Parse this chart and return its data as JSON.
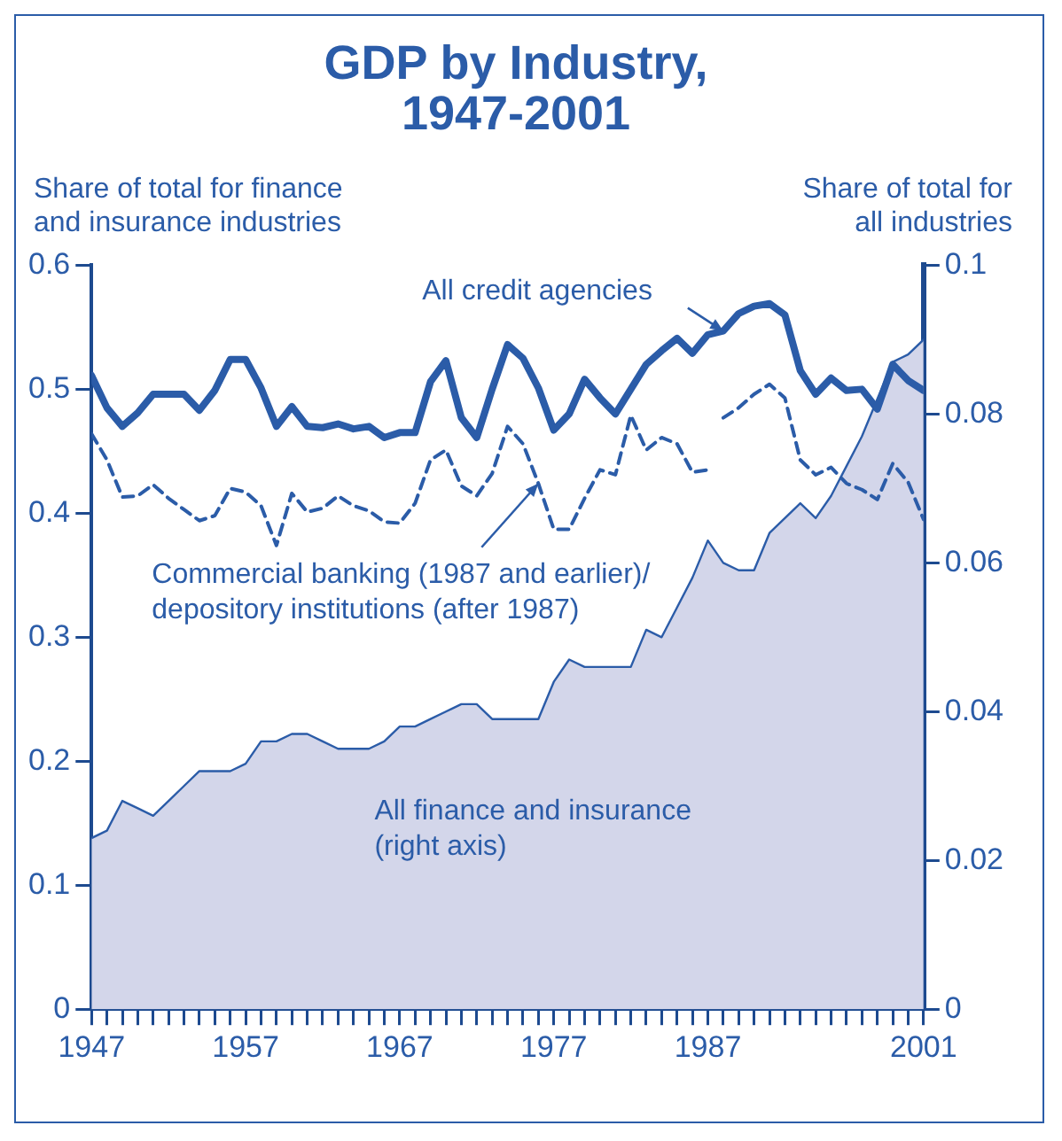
{
  "chart_data": {
    "type": "line",
    "title": "GDP by Industry,\n1947-2001",
    "ylabel": "Share of total for finance\nand insurance industries",
    "y2label": "Share of total for\nall industries",
    "x": [
      1947,
      1948,
      1949,
      1950,
      1951,
      1952,
      1953,
      1954,
      1955,
      1956,
      1957,
      1958,
      1959,
      1960,
      1961,
      1962,
      1963,
      1964,
      1965,
      1966,
      1967,
      1968,
      1969,
      1970,
      1971,
      1972,
      1973,
      1974,
      1975,
      1976,
      1977,
      1978,
      1979,
      1980,
      1981,
      1982,
      1983,
      1984,
      1985,
      1986,
      1987,
      1988,
      1989,
      1990,
      1991,
      1992,
      1993,
      1994,
      1995,
      1996,
      1997,
      1998,
      1999,
      2000,
      2001
    ],
    "series": [
      {
        "type": "area",
        "axis": "y2",
        "color": "#d3d6ea",
        "values": [
          0.023,
          0.024,
          0.028,
          0.027,
          0.026,
          0.028,
          0.03,
          0.032,
          0.032,
          0.032,
          0.033,
          0.036,
          0.036,
          0.037,
          0.037,
          0.036,
          0.035,
          0.035,
          0.035,
          0.036,
          0.038,
          0.038,
          0.039,
          0.04,
          0.041,
          0.041,
          0.039,
          0.039,
          0.039,
          0.039,
          0.044,
          0.047,
          0.046,
          0.046,
          0.046,
          0.046,
          0.051,
          0.05,
          0.054,
          0.058,
          0.063,
          0.06,
          0.059,
          0.059,
          0.064,
          0.066,
          0.068,
          0.066,
          0.069,
          0.073,
          0.077,
          0.082,
          0.087,
          0.088,
          0.09
        ]
      },
      {
        "type": "line",
        "line_style": "solid",
        "color": "#2b5ca8",
        "values": [
          0.511,
          0.485,
          0.47,
          0.481,
          0.496,
          0.496,
          0.496,
          0.483,
          0.499,
          0.524,
          0.524,
          0.501,
          0.47,
          0.486,
          0.47,
          0.469,
          0.472,
          0.468,
          0.47,
          0.461,
          0.465,
          0.465,
          0.506,
          0.523,
          0.477,
          0.461,
          0.5,
          0.536,
          0.525,
          0.501,
          0.467,
          0.48,
          0.508,
          0.493,
          0.48,
          0.5,
          0.52,
          0.531,
          0.541,
          0.529,
          0.544,
          0.547,
          0.561,
          0.567,
          0.569,
          0.56,
          0.515,
          0.496,
          0.509,
          0.499,
          0.5,
          0.484,
          0.52,
          0.507,
          0.499
        ]
      },
      {
        "type": "line",
        "line_style": "dashed",
        "color": "#2b5ca8",
        "x": [
          1947,
          1948,
          1949,
          1950,
          1951,
          1952,
          1953,
          1954,
          1955,
          1956,
          1957,
          1958,
          1959,
          1960,
          1961,
          1962,
          1963,
          1964,
          1965,
          1966,
          1967,
          1968,
          1969,
          1970,
          1971,
          1972,
          1973,
          1974,
          1975,
          1976,
          1977,
          1978,
          1979,
          1980,
          1981,
          1982,
          1983,
          1984,
          1985,
          1986,
          1987
        ],
        "values": [
          0.464,
          0.443,
          0.413,
          0.414,
          0.423,
          0.412,
          0.403,
          0.394,
          0.398,
          0.42,
          0.417,
          0.406,
          0.374,
          0.416,
          0.401,
          0.404,
          0.414,
          0.406,
          0.402,
          0.393,
          0.392,
          0.408,
          0.443,
          0.451,
          0.422,
          0.414,
          0.432,
          0.47,
          0.456,
          0.424,
          0.387,
          0.387,
          0.412,
          0.435,
          0.431,
          0.479,
          0.451,
          0.461,
          0.456,
          0.433,
          0.435
        ]
      },
      {
        "type": "line",
        "line_style": "dashed",
        "color": "#2b5ca8",
        "x": [
          1988,
          1989,
          1990,
          1991,
          1992,
          1993,
          1994,
          1995,
          1996,
          1997,
          1998,
          1999,
          2000,
          2001
        ],
        "values": [
          0.477,
          0.485,
          0.496,
          0.504,
          0.493,
          0.443,
          0.431,
          0.437,
          0.424,
          0.419,
          0.411,
          0.44,
          0.425,
          0.395
        ]
      }
    ],
    "xlim": [
      1947,
      2001
    ],
    "xticks": [
      1947,
      {
        "value": 1948,
        "label": null
      },
      {
        "value": 1949,
        "label": null
      },
      {
        "value": 1950,
        "label": null
      },
      {
        "value": 1951,
        "label": null
      },
      {
        "value": 1952,
        "label": null
      },
      {
        "value": 1953,
        "label": null
      },
      {
        "value": 1954,
        "label": null
      },
      {
        "value": 1955,
        "label": null
      },
      {
        "value": 1956,
        "label": null
      },
      1957,
      {
        "value": 1958,
        "label": null
      },
      {
        "value": 1959,
        "label": null
      },
      {
        "value": 1960,
        "label": null
      },
      {
        "value": 1961,
        "label": null
      },
      {
        "value": 1962,
        "label": null
      },
      {
        "value": 1963,
        "label": null
      },
      {
        "value": 1964,
        "label": null
      },
      {
        "value": 1965,
        "label": null
      },
      {
        "value": 1966,
        "label": null
      },
      1967,
      {
        "value": 1968,
        "label": null
      },
      {
        "value": 1969,
        "label": null
      },
      {
        "value": 1970,
        "label": null
      },
      {
        "value": 1971,
        "label": null
      },
      {
        "value": 1972,
        "label": null
      },
      {
        "value": 1973,
        "label": null
      },
      {
        "value": 1974,
        "label": null
      },
      {
        "value": 1975,
        "label": null
      },
      {
        "value": 1976,
        "label": null
      },
      1977,
      {
        "value": 1978,
        "label": null
      },
      {
        "value": 1979,
        "label": null
      },
      {
        "value": 1980,
        "label": null
      },
      {
        "value": 1981,
        "label": null
      },
      {
        "value": 1982,
        "label": null
      },
      {
        "value": 1983,
        "label": null
      },
      {
        "value": 1984,
        "label": null
      },
      {
        "value": 1985,
        "label": null
      },
      {
        "value": 1986,
        "label": null
      },
      1987,
      {
        "value": 1988,
        "label": null
      },
      {
        "value": 1989,
        "label": null
      },
      {
        "value": 1990,
        "label": null
      },
      {
        "value": 1991,
        "label": null
      },
      {
        "value": 1992,
        "label": null
      },
      {
        "value": 1993,
        "label": null
      },
      {
        "value": 1994,
        "label": null
      },
      {
        "value": 1995,
        "label": null
      },
      {
        "value": 1996,
        "label": null
      },
      {
        "value": 1997,
        "label": null
      },
      {
        "value": 1998,
        "label": null
      },
      {
        "value": 1999,
        "label": null
      },
      {
        "value": 2000,
        "label": null
      },
      2001
    ],
    "ylim": [
      0,
      0.6
    ],
    "yticks": [
      0,
      0.1,
      0.2,
      0.3,
      0.4,
      0.5,
      0.6
    ],
    "y2lim": [
      0,
      0.1
    ],
    "y2ticks": [
      0,
      0.02,
      0.04,
      0.06,
      0.08,
      0.1
    ],
    "grid": false,
    "legend": false,
    "marker": "none",
    "annotations": [
      {
        "text": "All credit agencies",
        "x": 1988,
        "y": 0.547
      },
      {
        "text": "Commercial banking (1987 and earlier)/\ndepository institutions (after 1987)",
        "x": 1976,
        "y": 0.424
      },
      "All finance and insurance\n(right axis)"
    ]
  }
}
